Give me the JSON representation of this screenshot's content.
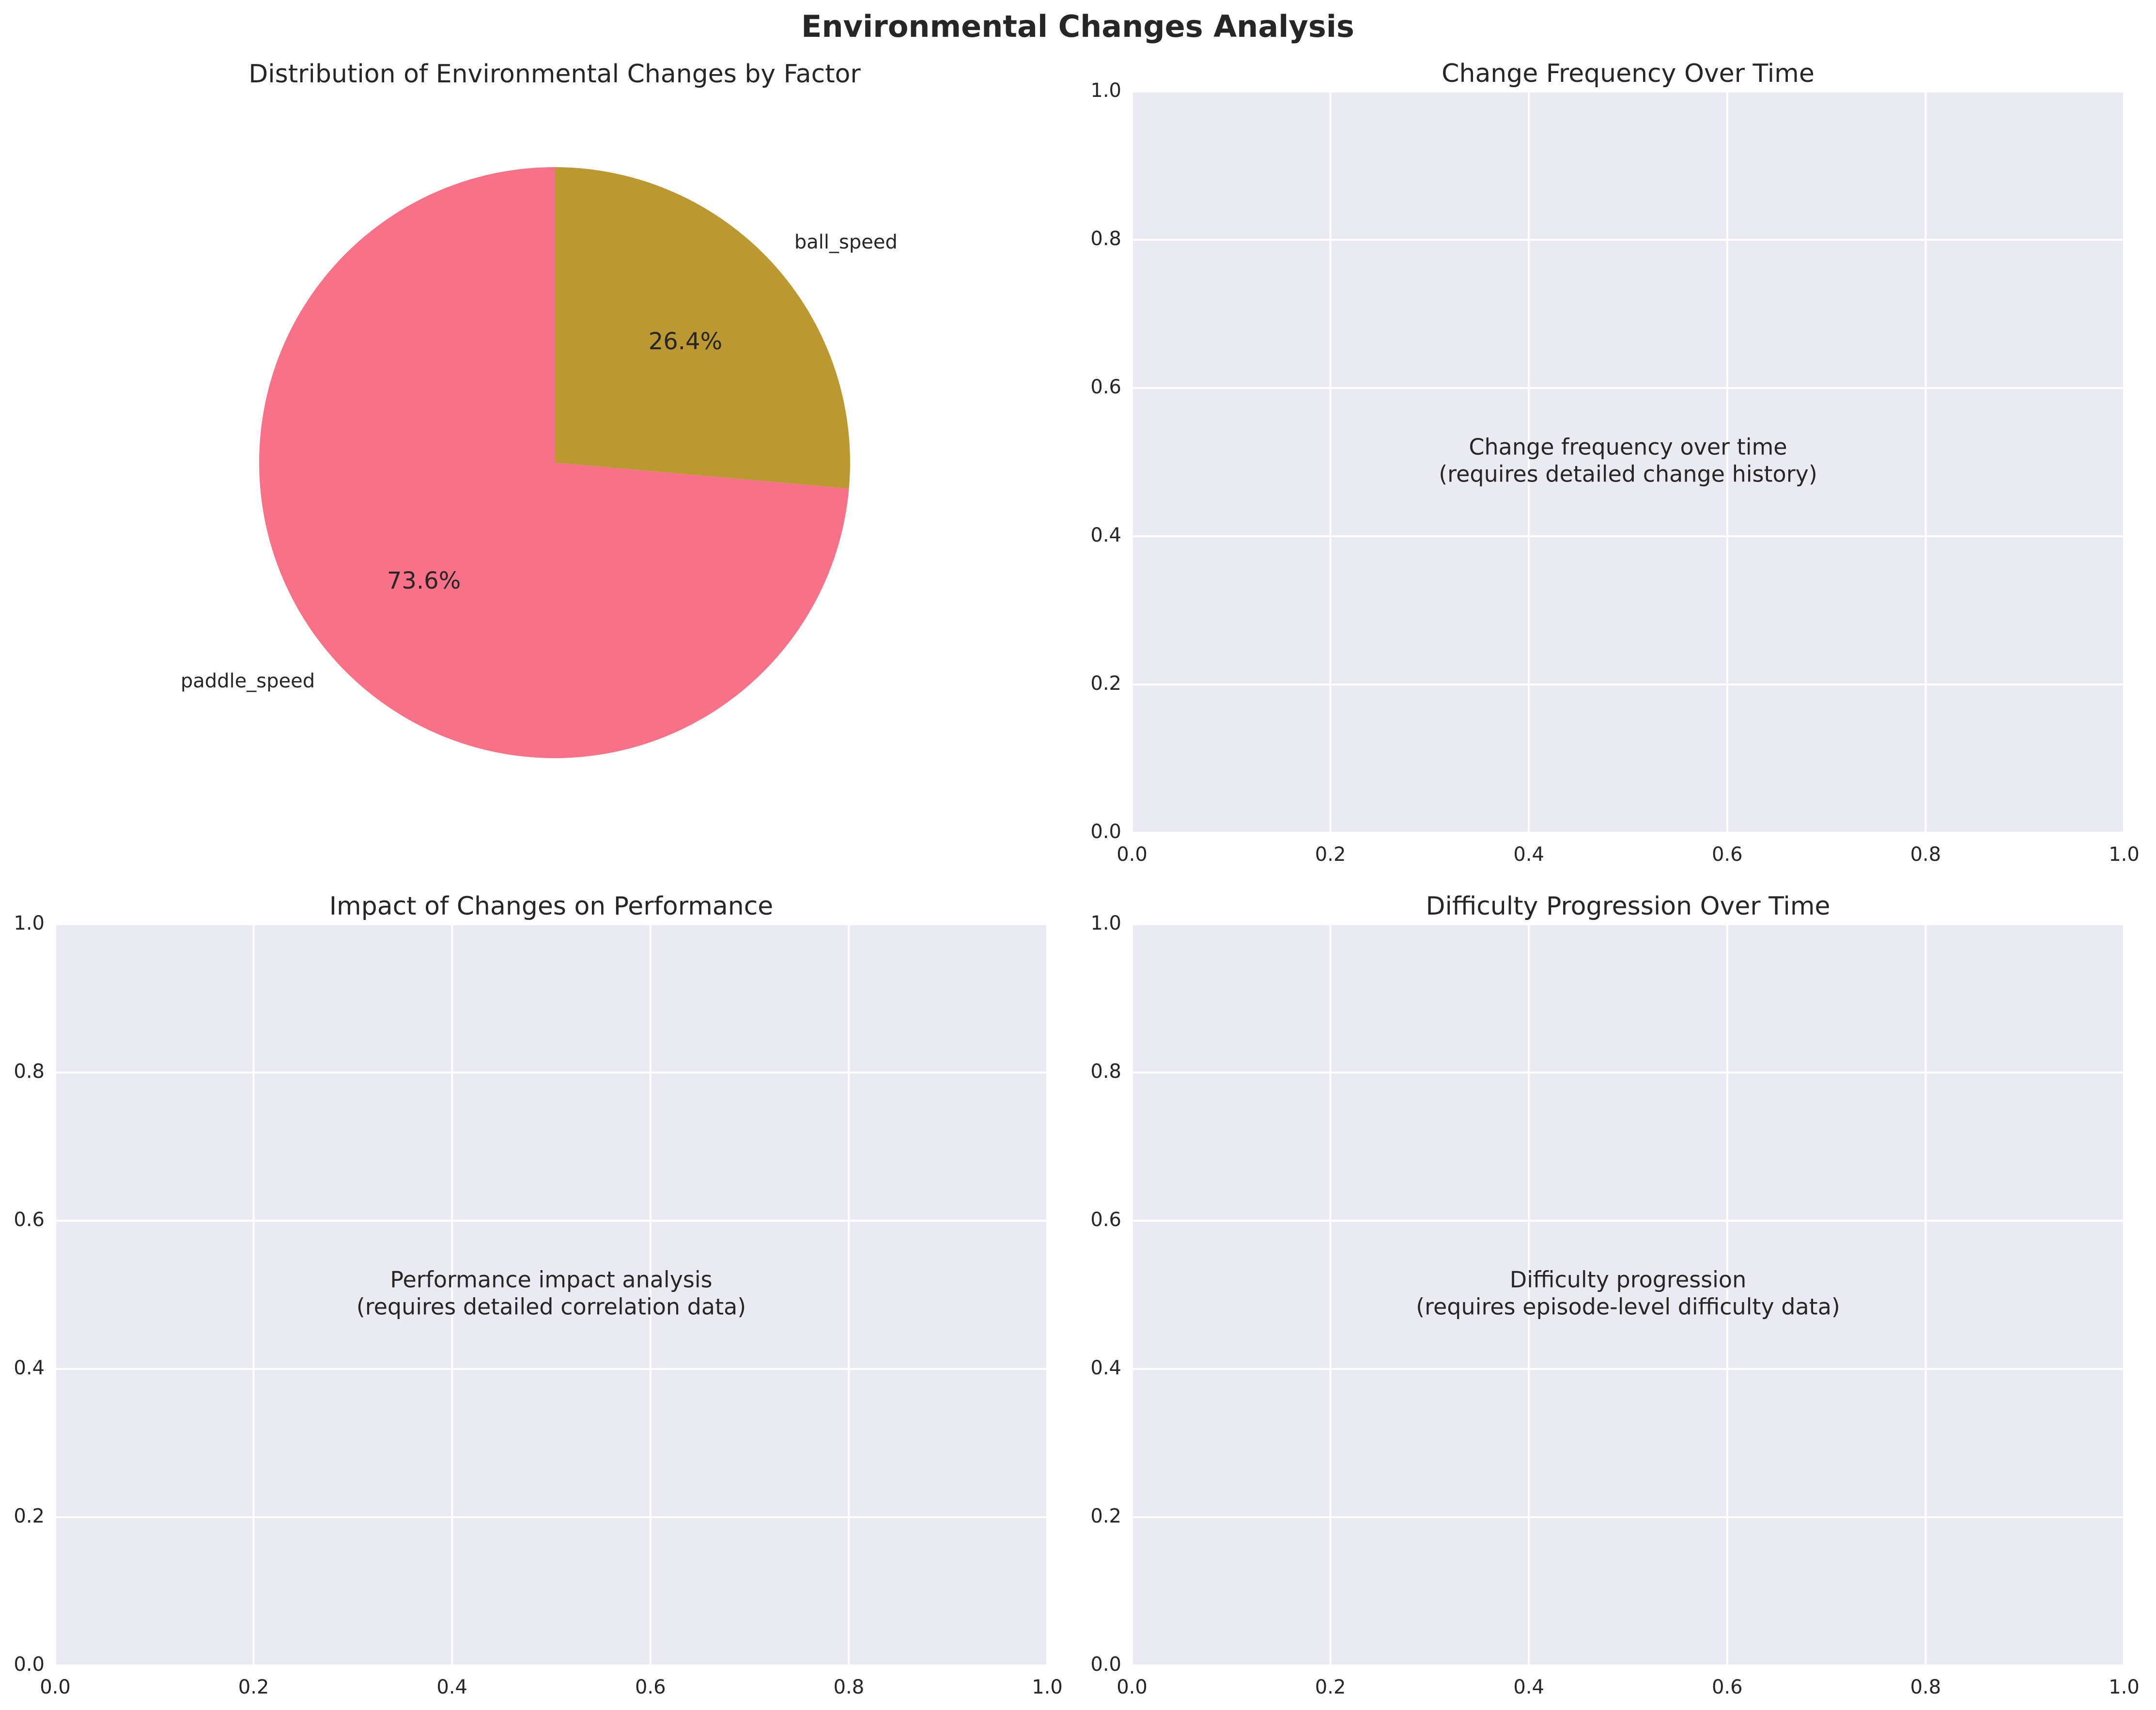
{
  "figure": {
    "title": "Environmental Changes Analysis"
  },
  "chart_data": [
    {
      "type": "pie",
      "title": "Distribution of Environmental Changes by Factor",
      "labels": [
        "paddle_speed",
        "ball_speed"
      ],
      "values": [
        73.6,
        26.4
      ],
      "percent_labels": [
        "73.6%",
        "26.4%"
      ],
      "colors": [
        "#f77189",
        "#bb9832"
      ],
      "start_angle": 90,
      "direction": "counterclockwise"
    },
    {
      "type": "line",
      "title": "Change Frequency Over Time",
      "xlim": [
        0,
        1
      ],
      "ylim": [
        0,
        1
      ],
      "xticks": [
        "0.0",
        "0.2",
        "0.4",
        "0.6",
        "0.8",
        "1.0"
      ],
      "yticks": [
        "0.0",
        "0.2",
        "0.4",
        "0.6",
        "0.8",
        "1.0"
      ],
      "grid": true,
      "message_lines": [
        "Change frequency over time",
        "(requires detailed change history)"
      ]
    },
    {
      "type": "scatter",
      "title": "Impact of Changes on Performance",
      "xlim": [
        0,
        1
      ],
      "ylim": [
        0,
        1
      ],
      "xticks": [
        "0.0",
        "0.2",
        "0.4",
        "0.6",
        "0.8",
        "1.0"
      ],
      "yticks": [
        "0.0",
        "0.2",
        "0.4",
        "0.6",
        "0.8",
        "1.0"
      ],
      "grid": true,
      "message_lines": [
        "Performance impact analysis",
        "(requires detailed correlation data)"
      ]
    },
    {
      "type": "line",
      "title": "Difficulty Progression Over Time",
      "xlim": [
        0,
        1
      ],
      "ylim": [
        0,
        1
      ],
      "xticks": [
        "0.0",
        "0.2",
        "0.4",
        "0.6",
        "0.8",
        "1.0"
      ],
      "yticks": [
        "0.0",
        "0.2",
        "0.4",
        "0.6",
        "0.8",
        "1.0"
      ],
      "grid": true,
      "message_lines": [
        "Difficulty progression",
        "(requires episode-level difficulty data)"
      ]
    }
  ],
  "style": {
    "axes_background": "#eaeaf2",
    "grid_color": "#ffffff",
    "text_color": "#262626"
  }
}
